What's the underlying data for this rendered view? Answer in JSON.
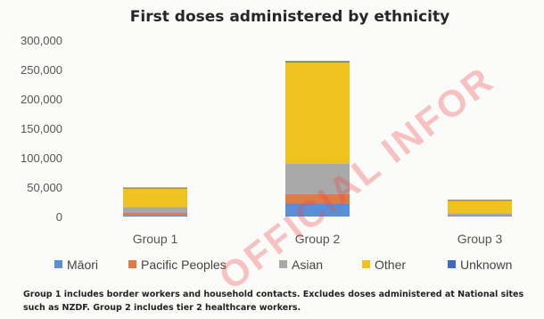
{
  "chart_data": {
    "type": "bar",
    "stacked": true,
    "title": "First doses administered by ethnicity",
    "categories": [
      "Group 1",
      "Group 2",
      "Group 3"
    ],
    "ylim": [
      0,
      300000
    ],
    "yticks": [
      0,
      50000,
      100000,
      150000,
      200000,
      250000,
      300000
    ],
    "ytick_labels": [
      "0",
      "50,000",
      "100,000",
      "150,000",
      "200,000",
      "250,000",
      "300,000"
    ],
    "grid": false,
    "legend_position": "bottom",
    "series": [
      {
        "name": "Māori",
        "color": "#5b8ed6",
        "values": [
          2500,
          22000,
          1200
        ]
      },
      {
        "name": "Pacific Peoples",
        "color": "#e07b45",
        "values": [
          3500,
          16000,
          1200
        ]
      },
      {
        "name": "Asian",
        "color": "#a8a8a8",
        "values": [
          10000,
          52000,
          3000
        ]
      },
      {
        "name": "Other",
        "color": "#f0c21e",
        "values": [
          32000,
          172000,
          22000
        ]
      },
      {
        "name": "Unknown",
        "color": "#3d6bc0",
        "values": [
          500,
          1500,
          300
        ]
      }
    ]
  },
  "footnote": {
    "line1": "Group 1 includes border workers and household contacts.  Excludes doses administered at National sites",
    "line2": "such as NZDF. Group 2 includes tier 2 healthcare workers."
  },
  "watermark": {
    "text": "OFFICIAL INFOR",
    "color": "#ec4646"
  }
}
